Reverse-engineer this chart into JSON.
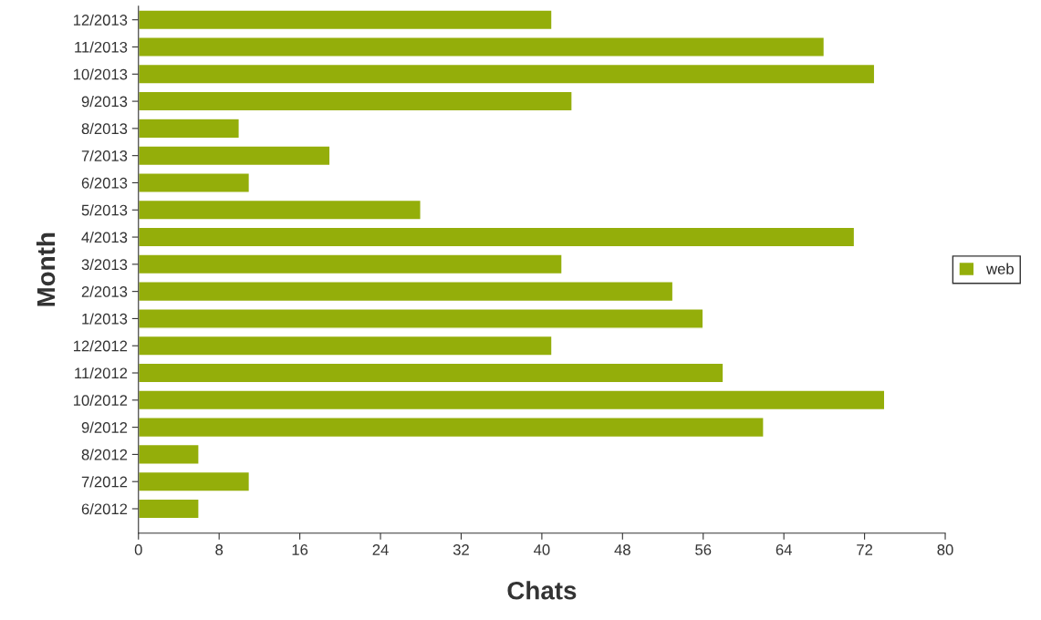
{
  "chart_data": {
    "type": "bar",
    "orientation": "horizontal",
    "xlabel": "Chats",
    "ylabel": "Month",
    "categories": [
      "12/2013",
      "11/2013",
      "10/2013",
      "9/2013",
      "8/2013",
      "7/2013",
      "6/2013",
      "5/2013",
      "4/2013",
      "3/2013",
      "2/2013",
      "1/2013",
      "12/2012",
      "11/2012",
      "10/2012",
      "9/2012",
      "8/2012",
      "7/2012",
      "6/2012"
    ],
    "series": [
      {
        "name": "web",
        "color": "#94ae0a",
        "values": [
          41,
          68,
          73,
          43,
          10,
          19,
          11,
          28,
          71,
          42,
          53,
          56,
          41,
          58,
          74,
          62,
          6,
          11,
          6
        ]
      }
    ],
    "xlim": [
      0,
      80
    ],
    "xticks": [
      0,
      8,
      16,
      24,
      32,
      40,
      48,
      56,
      64,
      72,
      80
    ],
    "grid": false,
    "legend": "right"
  }
}
